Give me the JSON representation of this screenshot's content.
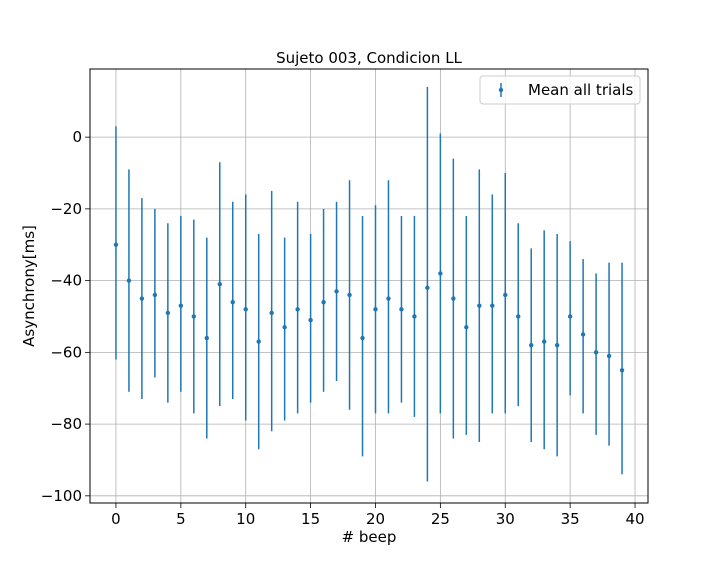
{
  "chart_data": {
    "type": "scatter",
    "title": "Sujeto 003, Condicion LL",
    "xlabel": "# beep",
    "ylabel": "Asynchrony[ms]",
    "xlim": [
      -2,
      41
    ],
    "ylim": [
      -102,
      19
    ],
    "xticks": [
      0,
      5,
      10,
      15,
      20,
      25,
      30,
      35,
      40
    ],
    "yticks": [
      0,
      -20,
      -40,
      -60,
      -80,
      -100
    ],
    "grid": true,
    "legend": {
      "position": "top-right",
      "entries": [
        "Mean all trials"
      ]
    },
    "color": "#1f77b4",
    "series": [
      {
        "name": "Mean all trials",
        "x": [
          0,
          1,
          2,
          3,
          4,
          5,
          6,
          7,
          8,
          9,
          10,
          11,
          12,
          13,
          14,
          15,
          16,
          17,
          18,
          19,
          20,
          21,
          22,
          23,
          24,
          25,
          26,
          27,
          28,
          29,
          30,
          31,
          32,
          33,
          34,
          35,
          36,
          37,
          38,
          39
        ],
        "y": [
          -30,
          -40,
          -45,
          -44,
          -49,
          -47,
          -50,
          -56,
          -41,
          -46,
          -48,
          -57,
          -49,
          -53,
          -48,
          -51,
          -46,
          -43,
          -44,
          -56,
          -48,
          -45,
          -48,
          -50,
          -42,
          -38,
          -45,
          -53,
          -47,
          -47,
          -44,
          -50,
          -58,
          -57,
          -58,
          -50,
          -55,
          -60,
          -61,
          -65
        ],
        "yerr_low": [
          -62,
          -71,
          -73,
          -67,
          -74,
          -71,
          -77,
          -84,
          -75,
          -73,
          -79,
          -87,
          -82,
          -79,
          -77,
          -74,
          -71,
          -68,
          -76,
          -89,
          -77,
          -77,
          -74,
          -78,
          -96,
          -77,
          -84,
          -83,
          -85,
          -77,
          -77,
          -75,
          -85,
          -87,
          -89,
          -72,
          -77,
          -83,
          -86,
          -94
        ],
        "yerr_high": [
          3,
          -9,
          -17,
          -20,
          -24,
          -22,
          -23,
          -28,
          -7,
          -18,
          -16,
          -27,
          -15,
          -28,
          -18,
          -27,
          -20,
          -18,
          -12,
          -22,
          -19,
          -12,
          -22,
          -22,
          14,
          1,
          -6,
          -22,
          -9,
          -16,
          -10,
          -24,
          -31,
          -26,
          -27,
          -29,
          -34,
          -38,
          -35,
          -35
        ]
      }
    ]
  }
}
